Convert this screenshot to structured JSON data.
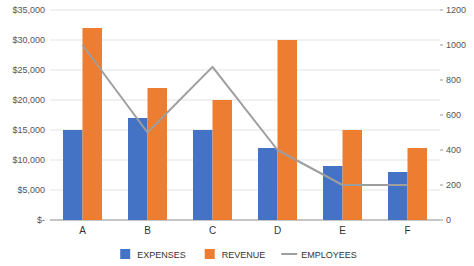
{
  "chart_data": {
    "type": "bar",
    "categories": [
      "A",
      "B",
      "C",
      "D",
      "E",
      "F"
    ],
    "series": [
      {
        "name": "EXPENSES",
        "color": "#4472C4",
        "values": [
          15000,
          17000,
          15000,
          12000,
          9000,
          8000
        ]
      },
      {
        "name": "REVENUE",
        "color": "#ED7D31",
        "values": [
          32000,
          22000,
          20000,
          30000,
          15000,
          12000
        ]
      },
      {
        "name": "EMPLOYEES",
        "color": "#9E9E9E",
        "type": "line",
        "axis": "y2",
        "values": [
          1000,
          500,
          875,
          400,
          200,
          200
        ]
      }
    ],
    "ylim": [
      0,
      35000
    ],
    "yticks": [
      {
        "value": 0,
        "label": "$-"
      },
      {
        "value": 5000,
        "label": "$5,000"
      },
      {
        "value": 10000,
        "label": "$10,000"
      },
      {
        "value": 15000,
        "label": "$15,000"
      },
      {
        "value": 20000,
        "label": "$20,000"
      },
      {
        "value": 25000,
        "label": "$25,000"
      },
      {
        "value": 30000,
        "label": "$30,000"
      },
      {
        "value": 35000,
        "label": "$35,000"
      }
    ],
    "y2lim": [
      0,
      1200
    ],
    "y2ticks": [
      0,
      200,
      400,
      600,
      800,
      1000,
      1200
    ],
    "grid": true,
    "legend": "bottom"
  }
}
